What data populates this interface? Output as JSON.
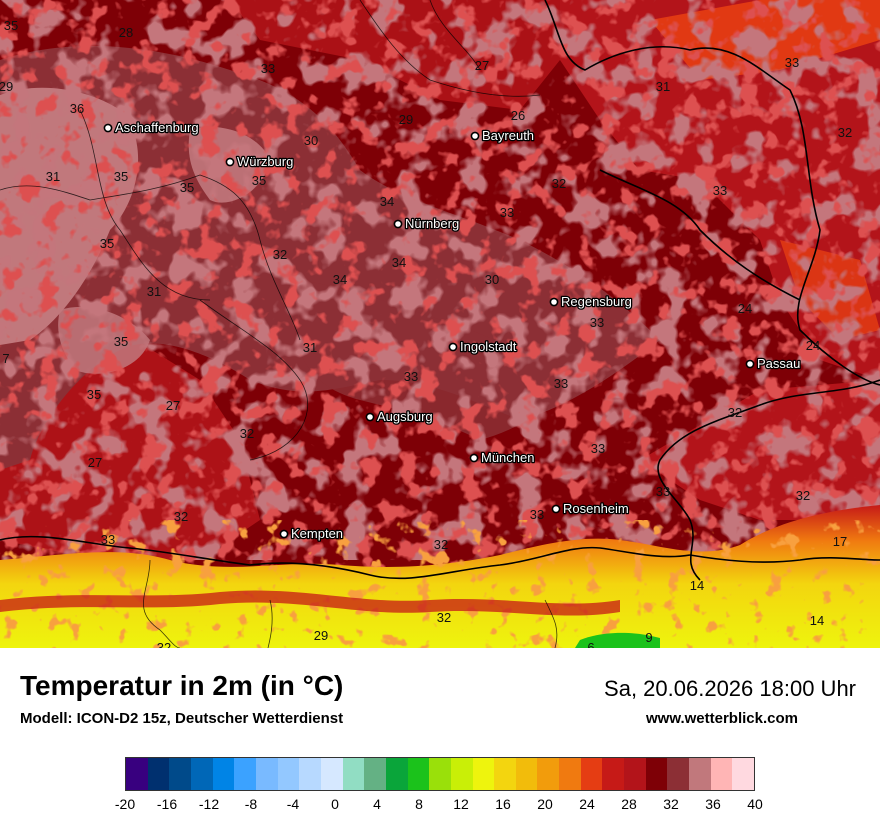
{
  "map": {
    "cities": [
      {
        "name": "Aschaffenburg",
        "lon": 108,
        "lat": 128
      },
      {
        "name": "Würzburg",
        "lon": 230,
        "lat": 162
      },
      {
        "name": "Bayreuth",
        "lon": 475,
        "lat": 136
      },
      {
        "name": "Nürnberg",
        "lon": 398,
        "lat": 224
      },
      {
        "name": "Regensburg",
        "lon": 554,
        "lat": 302
      },
      {
        "name": "Ingolstadt",
        "lon": 453,
        "lat": 347
      },
      {
        "name": "Passau",
        "lon": 750,
        "lat": 364
      },
      {
        "name": "Augsburg",
        "lon": 370,
        "lat": 417
      },
      {
        "name": "München",
        "lon": 474,
        "lat": 458
      },
      {
        "name": "Rosenheim",
        "lon": 556,
        "lat": 509
      },
      {
        "name": "Kempten",
        "lon": 284,
        "lat": 534
      }
    ],
    "temperature_labels": [
      {
        "value": "35",
        "lon": 11,
        "lat": 25
      },
      {
        "value": "28",
        "lon": 126,
        "lat": 32
      },
      {
        "value": "33",
        "lon": 268,
        "lat": 68
      },
      {
        "value": "27",
        "lon": 482,
        "lat": 65
      },
      {
        "value": "33",
        "lon": 792,
        "lat": 62
      },
      {
        "value": "31",
        "lon": 663,
        "lat": 86
      },
      {
        "value": "29",
        "lon": 6,
        "lat": 86
      },
      {
        "value": "36",
        "lon": 77,
        "lat": 108
      },
      {
        "value": "29",
        "lon": 406,
        "lat": 119
      },
      {
        "value": "26",
        "lon": 518,
        "lat": 115
      },
      {
        "value": "32",
        "lon": 845,
        "lat": 132
      },
      {
        "value": "30",
        "lon": 311,
        "lat": 140
      },
      {
        "value": "31",
        "lon": 53,
        "lat": 176
      },
      {
        "value": "35",
        "lon": 121,
        "lat": 176
      },
      {
        "value": "35",
        "lon": 187,
        "lat": 187
      },
      {
        "value": "35",
        "lon": 259,
        "lat": 180
      },
      {
        "value": "32",
        "lon": 559,
        "lat": 183
      },
      {
        "value": "33",
        "lon": 720,
        "lat": 190
      },
      {
        "value": "34",
        "lon": 387,
        "lat": 201
      },
      {
        "value": "33",
        "lon": 507,
        "lat": 212
      },
      {
        "value": "35",
        "lon": 107,
        "lat": 243
      },
      {
        "value": "32",
        "lon": 280,
        "lat": 254
      },
      {
        "value": "34",
        "lon": 399,
        "lat": 262
      },
      {
        "value": "34",
        "lon": 340,
        "lat": 279
      },
      {
        "value": "30",
        "lon": 492,
        "lat": 279
      },
      {
        "value": "31",
        "lon": 154,
        "lat": 291
      },
      {
        "value": "24",
        "lon": 745,
        "lat": 308
      },
      {
        "value": "33",
        "lon": 597,
        "lat": 322
      },
      {
        "value": "35",
        "lon": 121,
        "lat": 341
      },
      {
        "value": "31",
        "lon": 310,
        "lat": 347
      },
      {
        "value": "24",
        "lon": 813,
        "lat": 345
      },
      {
        "value": "33",
        "lon": 411,
        "lat": 376
      },
      {
        "value": "33",
        "lon": 561,
        "lat": 383
      },
      {
        "value": "35",
        "lon": 94,
        "lat": 394
      },
      {
        "value": "27",
        "lon": 173,
        "lat": 405
      },
      {
        "value": "32",
        "lon": 735,
        "lat": 412
      },
      {
        "value": "32",
        "lon": 247,
        "lat": 433
      },
      {
        "value": "33",
        "lon": 598,
        "lat": 448
      },
      {
        "value": "27",
        "lon": 95,
        "lat": 462
      },
      {
        "value": "33",
        "lon": 663,
        "lat": 491
      },
      {
        "value": "32",
        "lon": 803,
        "lat": 495
      },
      {
        "value": "32",
        "lon": 181,
        "lat": 516
      },
      {
        "value": "33",
        "lon": 537,
        "lat": 514
      },
      {
        "value": "33",
        "lon": 108,
        "lat": 539
      },
      {
        "value": "32",
        "lon": 441,
        "lat": 544
      },
      {
        "value": "17",
        "lon": 840,
        "lat": 541
      },
      {
        "value": "14",
        "lon": 697,
        "lat": 585
      },
      {
        "value": "32",
        "lon": 444,
        "lat": 617
      },
      {
        "value": "14",
        "lon": 817,
        "lat": 620
      },
      {
        "value": "29",
        "lon": 321,
        "lat": 635
      },
      {
        "value": "9",
        "lon": 649,
        "lat": 637
      },
      {
        "value": "32",
        "lon": 164,
        "lat": 647
      },
      {
        "value": "6",
        "lon": 591,
        "lat": 647
      },
      {
        "value": "7",
        "lon": 6,
        "lat": 358
      }
    ]
  },
  "footer": {
    "title": "Temperatur in 2m (in °C)",
    "model": "Modell: ICON-D2 15z, Deutscher Wetterdienst",
    "datetime": "Sa, 20.06.2026 18:00 Uhr",
    "website": "www.wetterblick.com"
  },
  "legend": {
    "colors": [
      "#38007f",
      "#00306f",
      "#004a8a",
      "#0067b7",
      "#0084e6",
      "#3ba2ff",
      "#79baff",
      "#93c8ff",
      "#b7d9ff",
      "#d6e8ff",
      "#91ddc3",
      "#64b184",
      "#0aa53a",
      "#1bc21b",
      "#9ae00a",
      "#c9ef07",
      "#eef40d",
      "#f3d50f",
      "#f2bc0b",
      "#f29c0c",
      "#f07a10",
      "#e53d13",
      "#c61a17",
      "#b3141a",
      "#7e0006",
      "#8c2f35",
      "#c1787c",
      "#ffb5b5",
      "#ffd9e0"
    ],
    "ticks": [
      "-20",
      "-16",
      "-12",
      "-8",
      "-4",
      "0",
      "4",
      "8",
      "12",
      "16",
      "20",
      "24",
      "28",
      "32",
      "36",
      "40"
    ]
  }
}
